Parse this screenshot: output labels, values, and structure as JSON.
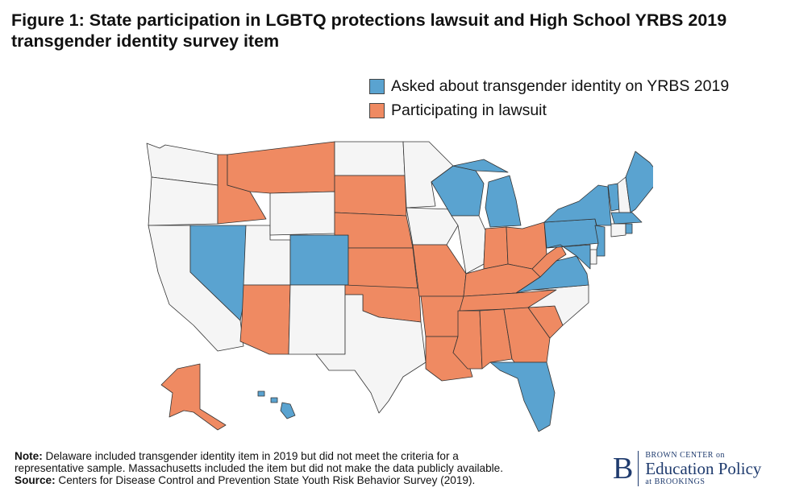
{
  "title": "Figure 1: State participation in LGBTQ protections lawsuit and High School YRBS 2019 transgender identity survey item",
  "colors": {
    "yrbs": "#5aa3d0",
    "lawsuit": "#ef8a62",
    "neither": "#f5f5f5",
    "border": "#333333"
  },
  "legend": [
    {
      "label": "Asked about transgender identity on YRBS 2019",
      "color": "#5aa3d0"
    },
    {
      "label": "Participating in lawsuit",
      "color": "#ef8a62"
    }
  ],
  "map": {
    "states": [
      {
        "code": "WA",
        "status": "neither"
      },
      {
        "code": "OR",
        "status": "neither"
      },
      {
        "code": "CA",
        "status": "neither"
      },
      {
        "code": "ID",
        "status": "lawsuit"
      },
      {
        "code": "NV",
        "status": "yrbs"
      },
      {
        "code": "UT",
        "status": "neither"
      },
      {
        "code": "AZ",
        "status": "lawsuit"
      },
      {
        "code": "MT",
        "status": "lawsuit"
      },
      {
        "code": "WY",
        "status": "neither"
      },
      {
        "code": "CO",
        "status": "yrbs"
      },
      {
        "code": "NM",
        "status": "neither"
      },
      {
        "code": "ND",
        "status": "neither"
      },
      {
        "code": "SD",
        "status": "lawsuit"
      },
      {
        "code": "NE",
        "status": "lawsuit"
      },
      {
        "code": "KS",
        "status": "lawsuit"
      },
      {
        "code": "OK",
        "status": "lawsuit"
      },
      {
        "code": "TX",
        "status": "neither"
      },
      {
        "code": "MN",
        "status": "neither"
      },
      {
        "code": "IA",
        "status": "neither"
      },
      {
        "code": "MO",
        "status": "lawsuit"
      },
      {
        "code": "AR",
        "status": "lawsuit"
      },
      {
        "code": "LA",
        "status": "lawsuit"
      },
      {
        "code": "WI",
        "status": "yrbs"
      },
      {
        "code": "IL",
        "status": "neither"
      },
      {
        "code": "MI",
        "status": "yrbs"
      },
      {
        "code": "IN",
        "status": "lawsuit"
      },
      {
        "code": "OH",
        "status": "lawsuit"
      },
      {
        "code": "KY",
        "status": "lawsuit"
      },
      {
        "code": "TN",
        "status": "lawsuit"
      },
      {
        "code": "MS",
        "status": "lawsuit"
      },
      {
        "code": "AL",
        "status": "lawsuit"
      },
      {
        "code": "GA",
        "status": "lawsuit"
      },
      {
        "code": "FL",
        "status": "yrbs"
      },
      {
        "code": "SC",
        "status": "lawsuit"
      },
      {
        "code": "NC",
        "status": "neither"
      },
      {
        "code": "VA",
        "status": "yrbs"
      },
      {
        "code": "WV",
        "status": "lawsuit"
      },
      {
        "code": "PA",
        "status": "yrbs"
      },
      {
        "code": "NY",
        "status": "yrbs"
      },
      {
        "code": "VT",
        "status": "yrbs"
      },
      {
        "code": "NH",
        "status": "neither"
      },
      {
        "code": "ME",
        "status": "yrbs"
      },
      {
        "code": "MA",
        "status": "yrbs"
      },
      {
        "code": "RI",
        "status": "yrbs"
      },
      {
        "code": "CT",
        "status": "neither"
      },
      {
        "code": "NJ",
        "status": "yrbs"
      },
      {
        "code": "DE",
        "status": "neither"
      },
      {
        "code": "MD",
        "status": "yrbs"
      },
      {
        "code": "AK",
        "status": "lawsuit"
      },
      {
        "code": "HI",
        "status": "yrbs"
      }
    ]
  },
  "footnote": {
    "note_label": "Note:",
    "note_line1": "Delaware included transgender identity item in 2019 but did not meet the criteria for a",
    "note_line2": "representative sample. Massachusetts included the item but did not make the data publicly available.",
    "source_label": "Source:",
    "source_text": "Centers for Disease Control and Prevention State Youth Risk Behavior Survey (2019)."
  },
  "logo": {
    "mark": "B",
    "line1": "BROWN CENTER on",
    "line2": "Education Policy",
    "line3": "at BROOKINGS"
  }
}
